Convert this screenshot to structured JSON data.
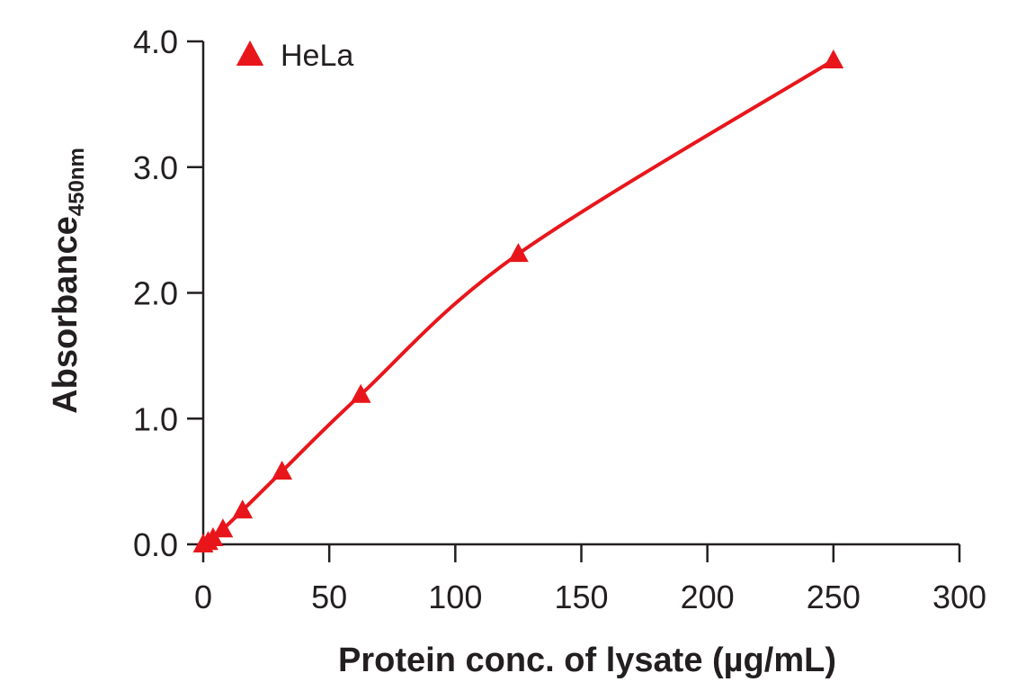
{
  "chart_data": {
    "type": "scatter",
    "xlabel": "Protein conc. of lysate (µg/mL)",
    "ylabel": "Absorbance",
    "ylabel_subscript": "450nm",
    "xlim": [
      0,
      300
    ],
    "ylim": [
      0,
      4.0
    ],
    "x_ticks": [
      0,
      50,
      100,
      150,
      200,
      250,
      300
    ],
    "x_tick_labels": [
      "0",
      "50",
      "100",
      "150",
      "200",
      "250",
      "300"
    ],
    "y_ticks": [
      0,
      1,
      2,
      3,
      4
    ],
    "y_tick_labels": [
      "0.0",
      "1.0",
      "2.0",
      "3.0",
      "4.0"
    ],
    "grid": false,
    "legend": {
      "position": "top-left"
    },
    "series": [
      {
        "name": "HeLa",
        "color": "#e8161b",
        "marker": "triangle",
        "x": [
          0,
          1.95,
          3.9,
          7.8,
          15.6,
          31.25,
          62.5,
          125,
          250
        ],
        "y": [
          0.0,
          0.02,
          0.05,
          0.12,
          0.27,
          0.58,
          1.19,
          2.31,
          3.85
        ],
        "fit_curve": true
      }
    ]
  }
}
